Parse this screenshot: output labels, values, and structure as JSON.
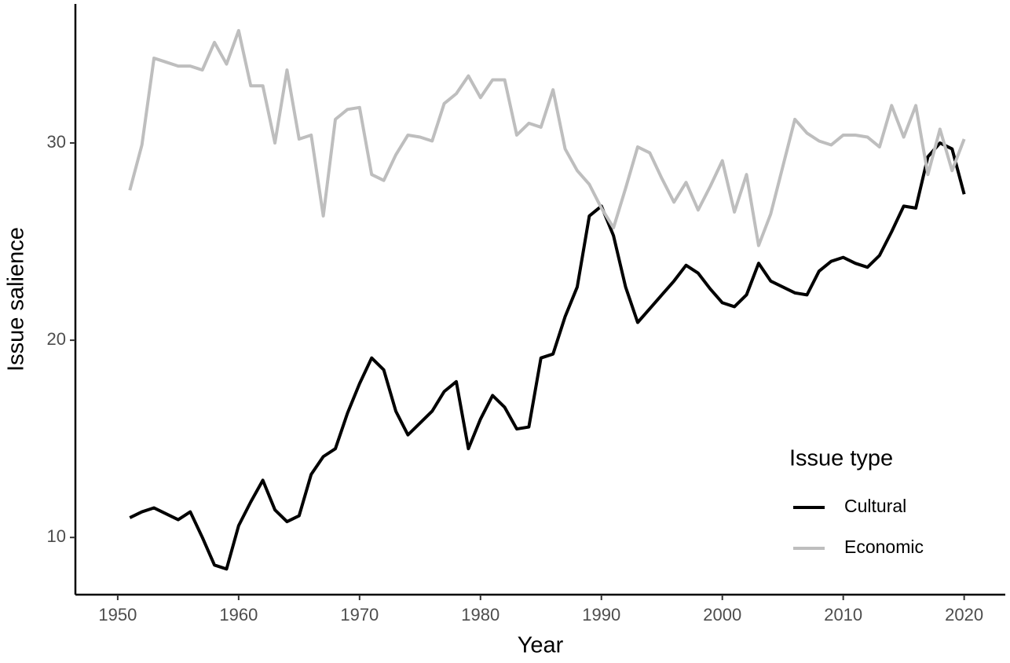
{
  "chart_data": {
    "type": "line",
    "x_label": "Year",
    "y_label": "Issue salience",
    "x": [
      1951,
      1952,
      1953,
      1954,
      1955,
      1956,
      1957,
      1958,
      1959,
      1960,
      1961,
      1962,
      1963,
      1964,
      1965,
      1966,
      1967,
      1968,
      1969,
      1970,
      1971,
      1972,
      1973,
      1974,
      1975,
      1976,
      1977,
      1978,
      1979,
      1980,
      1981,
      1982,
      1983,
      1984,
      1985,
      1986,
      1987,
      1988,
      1989,
      1990,
      1991,
      1992,
      1993,
      1994,
      1995,
      1996,
      1997,
      1998,
      1999,
      2000,
      2001,
      2002,
      2003,
      2004,
      2005,
      2006,
      2007,
      2008,
      2009,
      2010,
      2011,
      2012,
      2013,
      2014,
      2015,
      2016,
      2017,
      2018,
      2019,
      2020
    ],
    "series": [
      {
        "name": "Cultural",
        "color": "#000000",
        "values": [
          11.0,
          11.3,
          11.5,
          11.2,
          10.9,
          11.3,
          10.0,
          8.6,
          8.4,
          10.6,
          11.8,
          12.9,
          11.4,
          10.8,
          11.1,
          13.2,
          14.1,
          14.5,
          16.3,
          17.8,
          19.1,
          18.5,
          16.4,
          15.2,
          15.8,
          16.4,
          17.4,
          17.9,
          14.5,
          16.0,
          17.2,
          16.6,
          15.5,
          15.6,
          19.1,
          19.3,
          21.2,
          22.7,
          26.3,
          26.8,
          25.3,
          22.7,
          20.9,
          21.6,
          22.3,
          23.0,
          23.8,
          23.4,
          22.6,
          21.9,
          21.7,
          22.3,
          23.9,
          23.0,
          22.7,
          22.4,
          22.3,
          23.5,
          24.0,
          24.2,
          23.9,
          23.7,
          24.3,
          25.5,
          26.8,
          26.7,
          29.3,
          30.0,
          29.7,
          27.4
        ]
      },
      {
        "name": "Economic",
        "color": "#bebebe",
        "values": [
          27.6,
          29.9,
          34.3,
          34.1,
          33.9,
          33.9,
          33.7,
          35.1,
          34.0,
          35.7,
          32.9,
          32.9,
          30.0,
          33.7,
          30.2,
          30.4,
          26.3,
          31.2,
          31.7,
          31.8,
          28.4,
          28.1,
          29.4,
          30.4,
          30.3,
          30.1,
          32.0,
          32.5,
          33.4,
          32.3,
          33.2,
          33.2,
          30.4,
          31.0,
          30.8,
          32.7,
          29.7,
          28.6,
          27.9,
          26.7,
          25.7,
          27.7,
          29.8,
          29.5,
          28.2,
          27.0,
          28.0,
          26.6,
          27.8,
          29.1,
          26.5,
          28.4,
          24.8,
          26.4,
          28.8,
          31.2,
          30.5,
          30.1,
          29.9,
          30.4,
          30.4,
          30.3,
          29.8,
          31.9,
          30.3,
          31.9,
          28.4,
          30.7,
          28.6,
          30.2
        ]
      }
    ],
    "xlim": [
      1946.5,
      2023.4
    ],
    "xticks": [
      1950,
      1960,
      1970,
      1980,
      1990,
      2000,
      2010,
      2020
    ],
    "ylim": [
      7.1,
      37.05
    ],
    "yticks": [
      10,
      20,
      30
    ],
    "grid": false,
    "legend_title": "Issue type",
    "legend_position": "bottom-right"
  }
}
